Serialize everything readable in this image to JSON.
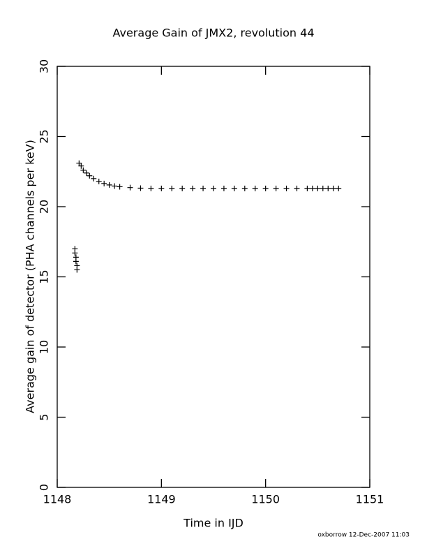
{
  "chart_data": {
    "type": "scatter",
    "title": "Average Gain of JMX2, revolution 44",
    "x_label": "Time in IJD",
    "y_label": "Average gain of detector (PHA channels per keV)",
    "footnote": "oxborrow 12-Dec-2007 11:03",
    "x": [
      1148.17,
      1148.17,
      1148.18,
      1148.18,
      1148.19,
      1148.19,
      1148.21,
      1148.23,
      1148.25,
      1148.28,
      1148.31,
      1148.35,
      1148.4,
      1148.45,
      1148.5,
      1148.55,
      1148.6,
      1148.7,
      1148.8,
      1148.9,
      1149.0,
      1149.1,
      1149.2,
      1149.3,
      1149.4,
      1149.5,
      1149.6,
      1149.7,
      1149.8,
      1149.9,
      1150.0,
      1150.1,
      1150.2,
      1150.3,
      1150.4,
      1150.45,
      1150.5,
      1150.55,
      1150.6,
      1150.65,
      1150.7
    ],
    "series": [
      {
        "name": "gain",
        "color": "#000000",
        "values": [
          17.0,
          16.7,
          16.4,
          16.1,
          15.8,
          15.5,
          23.1,
          22.9,
          22.6,
          22.4,
          22.2,
          22.0,
          21.8,
          21.65,
          21.55,
          21.47,
          21.42,
          21.36,
          21.32,
          21.3,
          21.3,
          21.3,
          21.3,
          21.3,
          21.3,
          21.3,
          21.3,
          21.3,
          21.3,
          21.3,
          21.3,
          21.3,
          21.3,
          21.3,
          21.3,
          21.3,
          21.3,
          21.3,
          21.3,
          21.3,
          21.3
        ]
      }
    ],
    "xlim": [
      1148,
      1151
    ],
    "xticks": [
      1148,
      1149,
      1150,
      1151
    ],
    "ylim": [
      0,
      30
    ],
    "yticks": [
      0,
      5,
      10,
      15,
      20,
      25,
      30
    ],
    "grid": false
  }
}
